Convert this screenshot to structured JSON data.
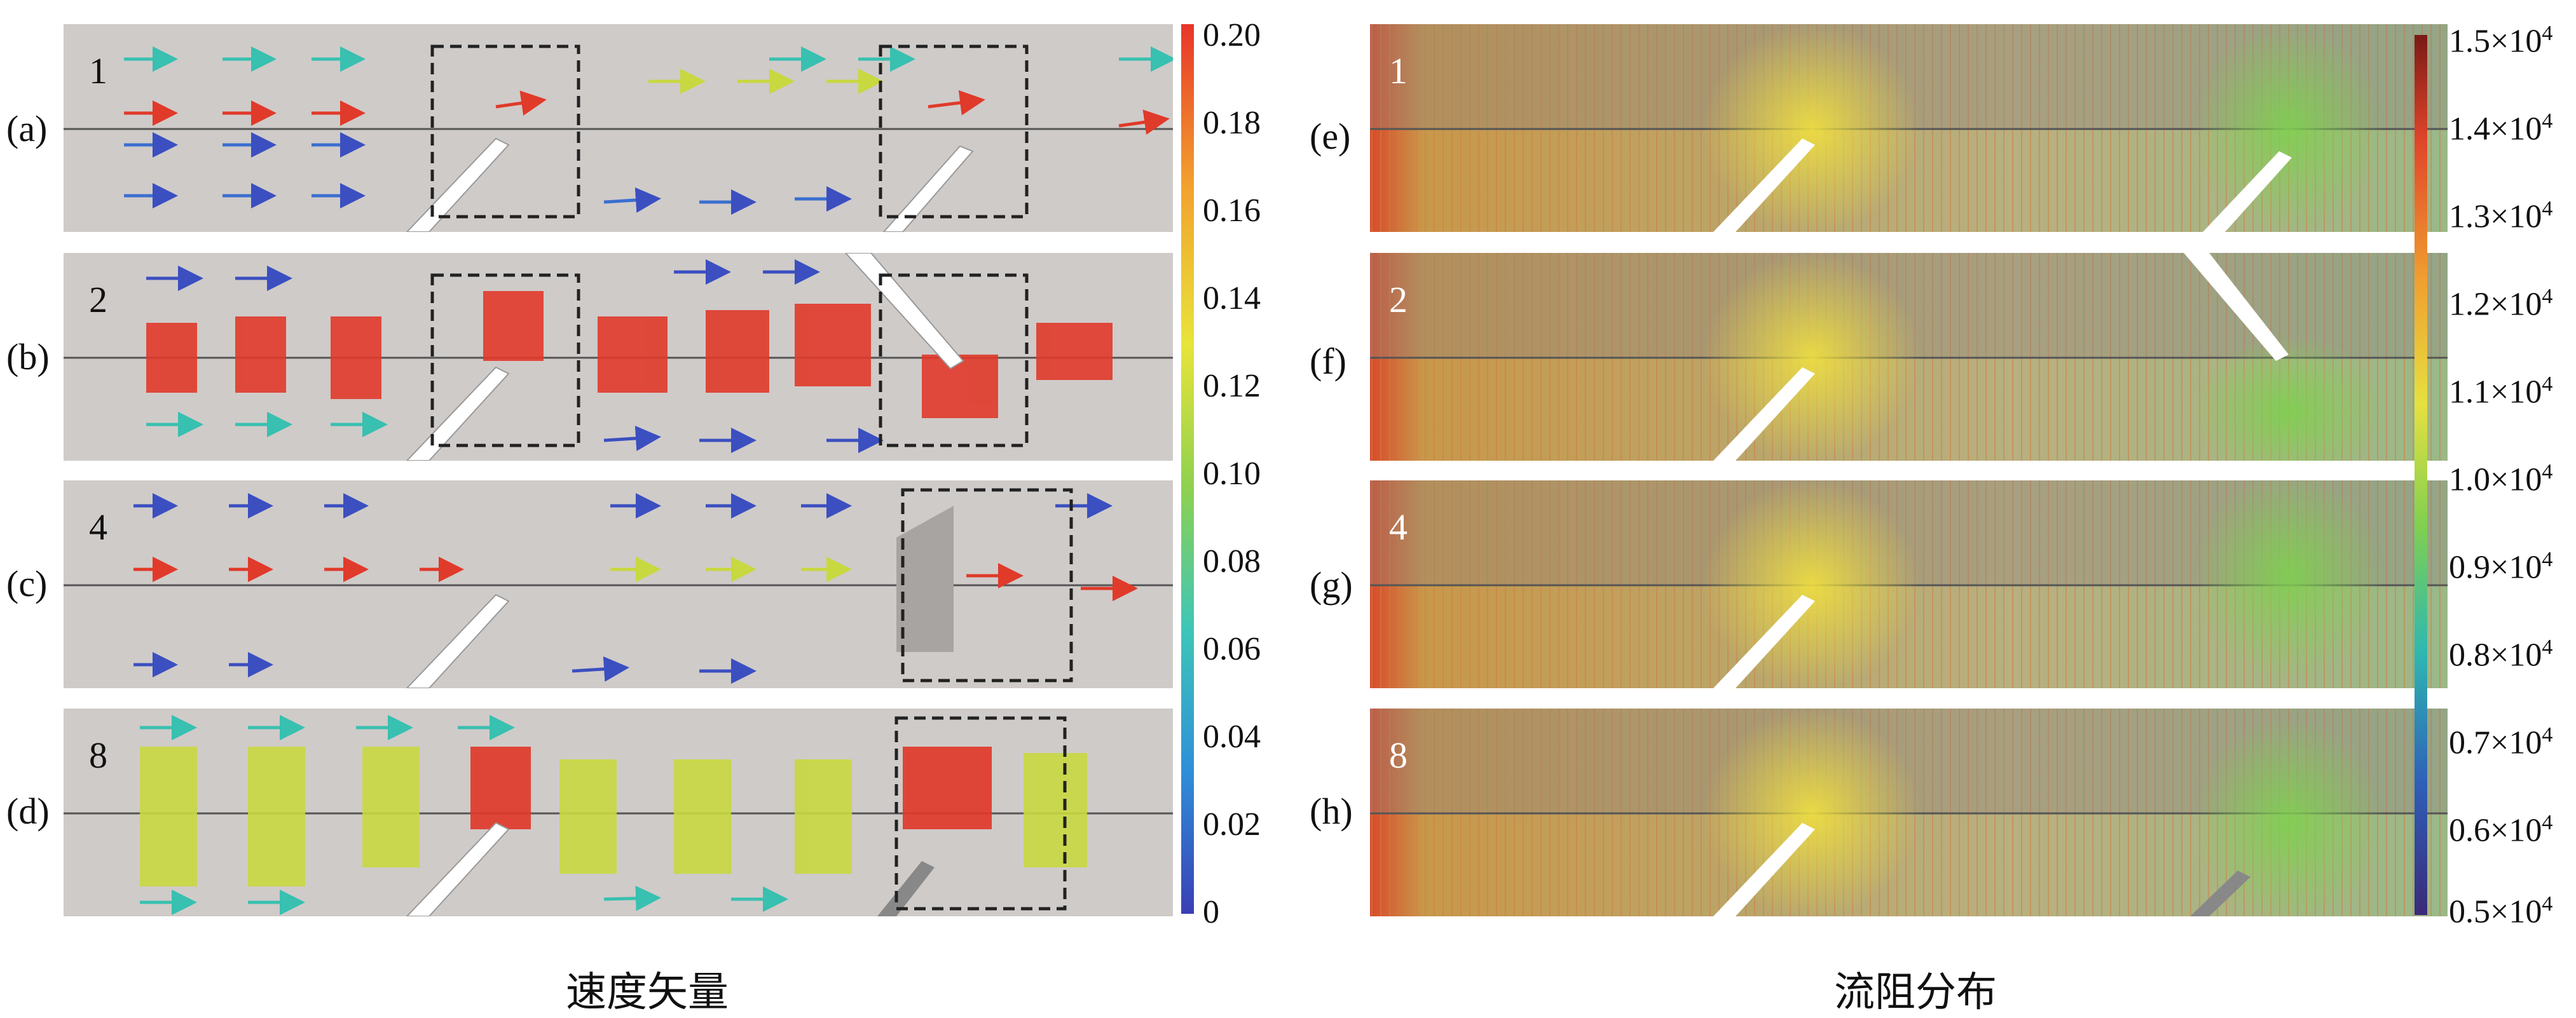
{
  "left_panel": {
    "caption": "速度矢量",
    "rows": [
      {
        "letter": "(a)",
        "number": "1"
      },
      {
        "letter": "(b)",
        "number": "2"
      },
      {
        "letter": "(c)",
        "number": "4"
      },
      {
        "letter": "(d)",
        "number": "8"
      }
    ],
    "colorbar": {
      "ticks": [
        "0.20",
        "0.18",
        "0.16",
        "0.14",
        "0.12",
        "0.10",
        "0.08",
        "0.06",
        "0.04",
        "0.02",
        "0"
      ],
      "colors": [
        "#e8352a",
        "#f2a12e",
        "#e8e43a",
        "#8fd14f",
        "#3cc6b8",
        "#2f8fd8",
        "#3a3fb5"
      ]
    }
  },
  "right_panel": {
    "caption": "流阻分布",
    "rows": [
      {
        "letter": "(e)",
        "number": "1"
      },
      {
        "letter": "(f)",
        "number": "2"
      },
      {
        "letter": "(g)",
        "number": "4"
      },
      {
        "letter": "(h)",
        "number": "8"
      }
    ],
    "colorbar": {
      "ticks": [
        "1.5×10",
        "1.4×10",
        "1.3×10",
        "1.2×10",
        "1.1×10",
        "1.0×10",
        "0.9×10",
        "0.8×10",
        "0.7×10",
        "0.6×10",
        "0.5×10"
      ],
      "exponent": "4",
      "colors": [
        "#7a1a16",
        "#e0452a",
        "#f0a030",
        "#e6e040",
        "#7fcf50",
        "#2fb8b0",
        "#2f5fb8",
        "#3a2a78"
      ]
    }
  }
}
